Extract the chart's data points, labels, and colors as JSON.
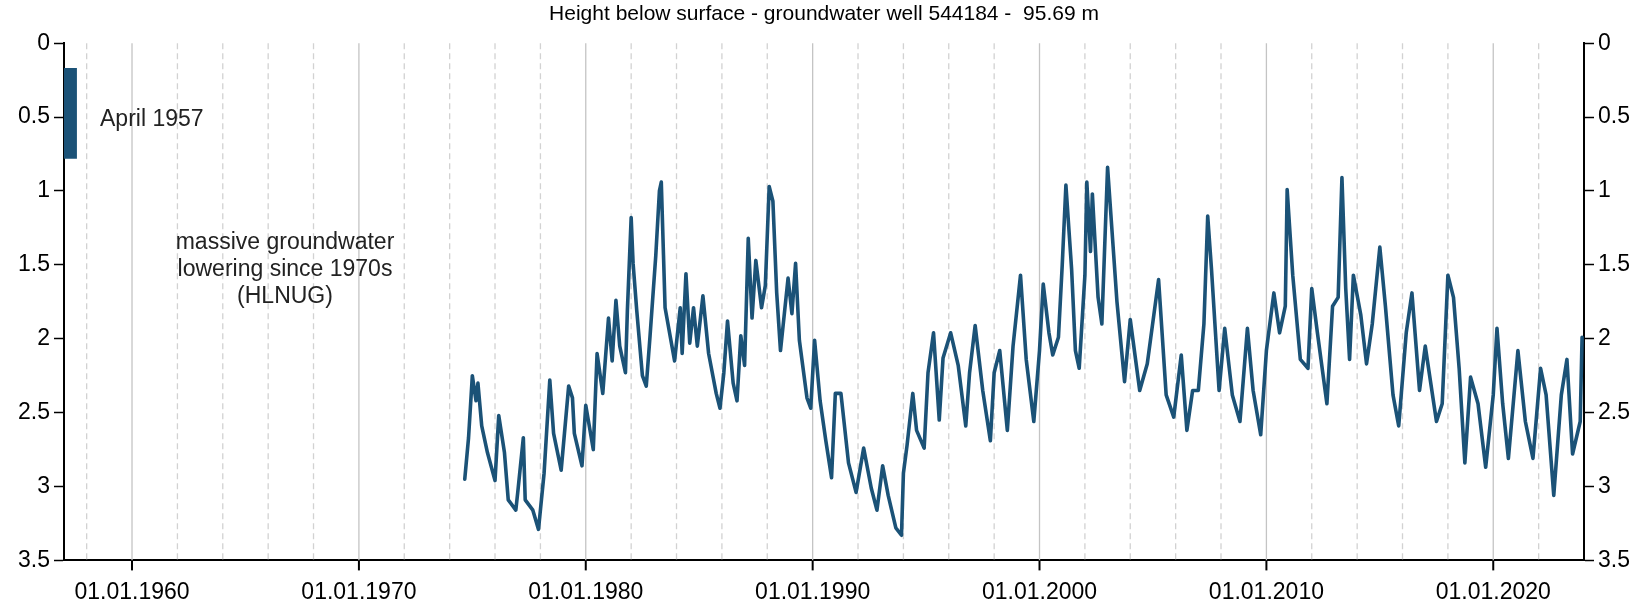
{
  "chart_data": {
    "type": "line",
    "title": "Height below surface - groundwater well 544184 -  95.69 m",
    "xlim": [
      "1957-01-01",
      "2024-01-01"
    ],
    "xticks": [
      {
        "value": "1958-01-01",
        "label": null
      },
      {
        "value": "1960-01-01",
        "label": "01.01.1960"
      },
      {
        "value": "1962-01-01",
        "label": null
      },
      {
        "value": "1964-01-01",
        "label": null
      },
      {
        "value": "1966-01-01",
        "label": null
      },
      {
        "value": "1968-01-01",
        "label": null
      },
      {
        "value": "1970-01-01",
        "label": "01.01.1970"
      },
      {
        "value": "1972-01-01",
        "label": null
      },
      {
        "value": "1974-01-01",
        "label": null
      },
      {
        "value": "1976-01-01",
        "label": null
      },
      {
        "value": "1978-01-01",
        "label": null
      },
      {
        "value": "1980-01-01",
        "label": "01.01.1980"
      },
      {
        "value": "1982-01-01",
        "label": null
      },
      {
        "value": "1984-01-01",
        "label": null
      },
      {
        "value": "1986-01-01",
        "label": null
      },
      {
        "value": "1988-01-01",
        "label": null
      },
      {
        "value": "1990-01-01",
        "label": "01.01.1990"
      },
      {
        "value": "1992-01-01",
        "label": null
      },
      {
        "value": "1994-01-01",
        "label": null
      },
      {
        "value": "1996-01-01",
        "label": null
      },
      {
        "value": "1998-01-01",
        "label": null
      },
      {
        "value": "2000-01-01",
        "label": "01.01.2000"
      },
      {
        "value": "2002-01-01",
        "label": null
      },
      {
        "value": "2004-01-01",
        "label": null
      },
      {
        "value": "2006-01-01",
        "label": null
      },
      {
        "value": "2008-01-01",
        "label": null
      },
      {
        "value": "2010-01-01",
        "label": "01.01.2010"
      },
      {
        "value": "2012-01-01",
        "label": null
      },
      {
        "value": "2014-01-01",
        "label": null
      },
      {
        "value": "2016-01-01",
        "label": null
      },
      {
        "value": "2018-01-01",
        "label": null
      },
      {
        "value": "2020-01-01",
        "label": "01.01.2020"
      },
      {
        "value": "2022-01-01",
        "label": null
      }
    ],
    "ylim": [
      3.5,
      0
    ],
    "yticks": [
      0,
      0.5,
      1,
      1.5,
      2,
      2.5,
      3,
      3.5
    ],
    "y2lim": [
      3.5,
      0
    ],
    "y2ticks": [
      0,
      0.5,
      1,
      1.5,
      2,
      2.5,
      3,
      3.5
    ],
    "grid": "x",
    "legend": false,
    "marker": "none",
    "line_style": "solid",
    "series": [
      {
        "type": "bar",
        "color": "#1b5277",
        "x": [
          "1957-04"
        ],
        "base": [
          0.17
        ],
        "values": [
          0.61
        ]
      },
      {
        "color": "#1b5277",
        "x": [
          "1974-09",
          "1974-11",
          "1975-01",
          "1975-03",
          "1975-04",
          "1975-06",
          "1975-09",
          "1976-01",
          "1976-03",
          "1976-06",
          "1976-08",
          "1976-12",
          "1977-01",
          "1977-04",
          "1977-05",
          "1977-09",
          "1977-12",
          "1978-03",
          "1978-06",
          "1978-08",
          "1978-12",
          "1979-04",
          "1979-06",
          "1979-07",
          "1979-11",
          "1980-01",
          "1980-05",
          "1980-07",
          "1980-10",
          "1981-01",
          "1981-03",
          "1981-05",
          "1981-07",
          "1981-10",
          "1981-11",
          "1982-01",
          "1982-02",
          "1982-04",
          "1982-07",
          "1982-09",
          "1982-11",
          "1983-02",
          "1983-04",
          "1983-05",
          "1983-07",
          "1983-12",
          "1984-03",
          "1984-04",
          "1984-06",
          "1984-08",
          "1984-10",
          "1984-12",
          "1985-03",
          "1985-06",
          "1985-10",
          "1985-12",
          "1986-02",
          "1986-04",
          "1986-07",
          "1986-09",
          "1986-11",
          "1987-01",
          "1987-03",
          "1987-05",
          "1987-07",
          "1987-10",
          "1987-12",
          "1988-02",
          "1988-04",
          "1988-06",
          "1988-08",
          "1988-12",
          "1989-02",
          "1989-04",
          "1989-06",
          "1989-10",
          "1989-12",
          "1990-02",
          "1990-05",
          "1990-08",
          "1990-11",
          "1991-01",
          "1991-04",
          "1991-08",
          "1991-12",
          "1992-04",
          "1992-08",
          "1992-11",
          "1993-02",
          "1993-05",
          "1993-09",
          "1993-12",
          "1994-01",
          "1994-03",
          "1994-06",
          "1994-08",
          "1994-12",
          "1995-02",
          "1995-05",
          "1995-08",
          "1995-10",
          "1996-02",
          "1996-06",
          "1996-10",
          "1996-12",
          "1997-03",
          "1997-07",
          "1997-11",
          "1998-01",
          "1998-04",
          "1998-08",
          "1998-11",
          "1999-03",
          "1999-06",
          "1999-10",
          "2000-01",
          "2000-03",
          "2000-06",
          "2000-08",
          "2000-11",
          "2001-01",
          "2001-03",
          "2001-06",
          "2001-08",
          "2001-10",
          "2002-01",
          "2002-02",
          "2002-04",
          "2002-05",
          "2002-08",
          "2002-10",
          "2003-01",
          "2003-06",
          "2003-10",
          "2004-01",
          "2004-06",
          "2004-10",
          "2005-04",
          "2005-08",
          "2005-12",
          "2006-04",
          "2006-07",
          "2006-10",
          "2007-01",
          "2007-04",
          "2007-06",
          "2007-08",
          "2007-12",
          "2008-03",
          "2008-07",
          "2008-11",
          "2009-03",
          "2009-06",
          "2009-10",
          "2010-01",
          "2010-05",
          "2010-08",
          "2010-11",
          "2010-12",
          "2011-03",
          "2011-07",
          "2011-11",
          "2012-01",
          "2012-04",
          "2012-09",
          "2012-12",
          "2013-03",
          "2013-05",
          "2013-07",
          "2013-09",
          "2013-11",
          "2014-03",
          "2014-06",
          "2014-09",
          "2015-01",
          "2015-04",
          "2015-08",
          "2015-11",
          "2016-03",
          "2016-06",
          "2016-10",
          "2017-01",
          "2017-07",
          "2017-10",
          "2018-01",
          "2018-04",
          "2018-07",
          "2018-10",
          "2019-01",
          "2019-05",
          "2019-09",
          "2020-01",
          "2020-03",
          "2020-06",
          "2020-09",
          "2021-02",
          "2021-06",
          "2021-10",
          "2022-02",
          "2022-05",
          "2022-09",
          "2023-01",
          "2023-04",
          "2023-07",
          "2023-11",
          "2023-12"
        ],
        "values": [
          2.95,
          2.67,
          2.25,
          2.42,
          2.3,
          2.59,
          2.77,
          2.96,
          2.52,
          2.77,
          3.09,
          3.16,
          3.04,
          2.67,
          3.09,
          3.16,
          3.29,
          2.91,
          2.28,
          2.64,
          2.89,
          2.32,
          2.4,
          2.64,
          2.86,
          2.45,
          2.75,
          2.1,
          2.37,
          1.86,
          2.15,
          1.74,
          2.05,
          2.23,
          1.81,
          1.18,
          1.49,
          1.81,
          2.25,
          2.32,
          1.98,
          1.44,
          1.0,
          0.94,
          1.79,
          2.15,
          1.79,
          2.1,
          1.56,
          2.03,
          1.79,
          2.05,
          1.71,
          2.1,
          2.37,
          2.47,
          2.23,
          1.88,
          2.3,
          2.42,
          1.98,
          2.18,
          1.32,
          1.86,
          1.47,
          1.79,
          1.64,
          0.97,
          1.07,
          1.69,
          2.08,
          1.59,
          1.83,
          1.49,
          2.01,
          2.4,
          2.47,
          2.01,
          2.42,
          2.69,
          2.94,
          2.37,
          2.37,
          2.84,
          3.04,
          2.74,
          3.01,
          3.16,
          2.86,
          3.06,
          3.28,
          3.33,
          2.91,
          2.72,
          2.37,
          2.62,
          2.74,
          2.23,
          1.96,
          2.55,
          2.13,
          1.96,
          2.18,
          2.59,
          2.23,
          1.91,
          2.35,
          2.69,
          2.23,
          2.08,
          2.62,
          2.05,
          1.57,
          2.14,
          2.56,
          2.08,
          1.63,
          1.96,
          2.11,
          1.99,
          1.5,
          0.96,
          1.53,
          2.08,
          2.2,
          1.57,
          0.94,
          1.41,
          1.02,
          1.72,
          1.9,
          0.84,
          1.75,
          2.29,
          1.87,
          2.35,
          2.17,
          1.6,
          2.38,
          2.53,
          2.11,
          2.62,
          2.35,
          2.35,
          1.9,
          1.17,
          1.53,
          2.35,
          1.93,
          2.38,
          2.56,
          1.93,
          2.35,
          2.65,
          2.08,
          1.69,
          1.96,
          1.78,
          0.99,
          1.57,
          2.14,
          2.2,
          1.66,
          1.96,
          2.44,
          1.78,
          1.72,
          0.91,
          1.66,
          2.14,
          1.57,
          1.84,
          2.17,
          1.9,
          1.38,
          1.78,
          2.38,
          2.59,
          1.96,
          1.69,
          2.35,
          2.05,
          2.56,
          2.44,
          1.57,
          1.72,
          2.2,
          2.84,
          2.26,
          2.44,
          2.87,
          2.38,
          1.93,
          2.44,
          2.81,
          2.08,
          2.56,
          2.81,
          2.2,
          2.38,
          3.06,
          2.38,
          2.14,
          2.78,
          2.56,
          1.99
        ]
      }
    ],
    "annotations": [
      "April 1957",
      "massive groundwater lowering since 1970s (HLNUG)"
    ]
  }
}
